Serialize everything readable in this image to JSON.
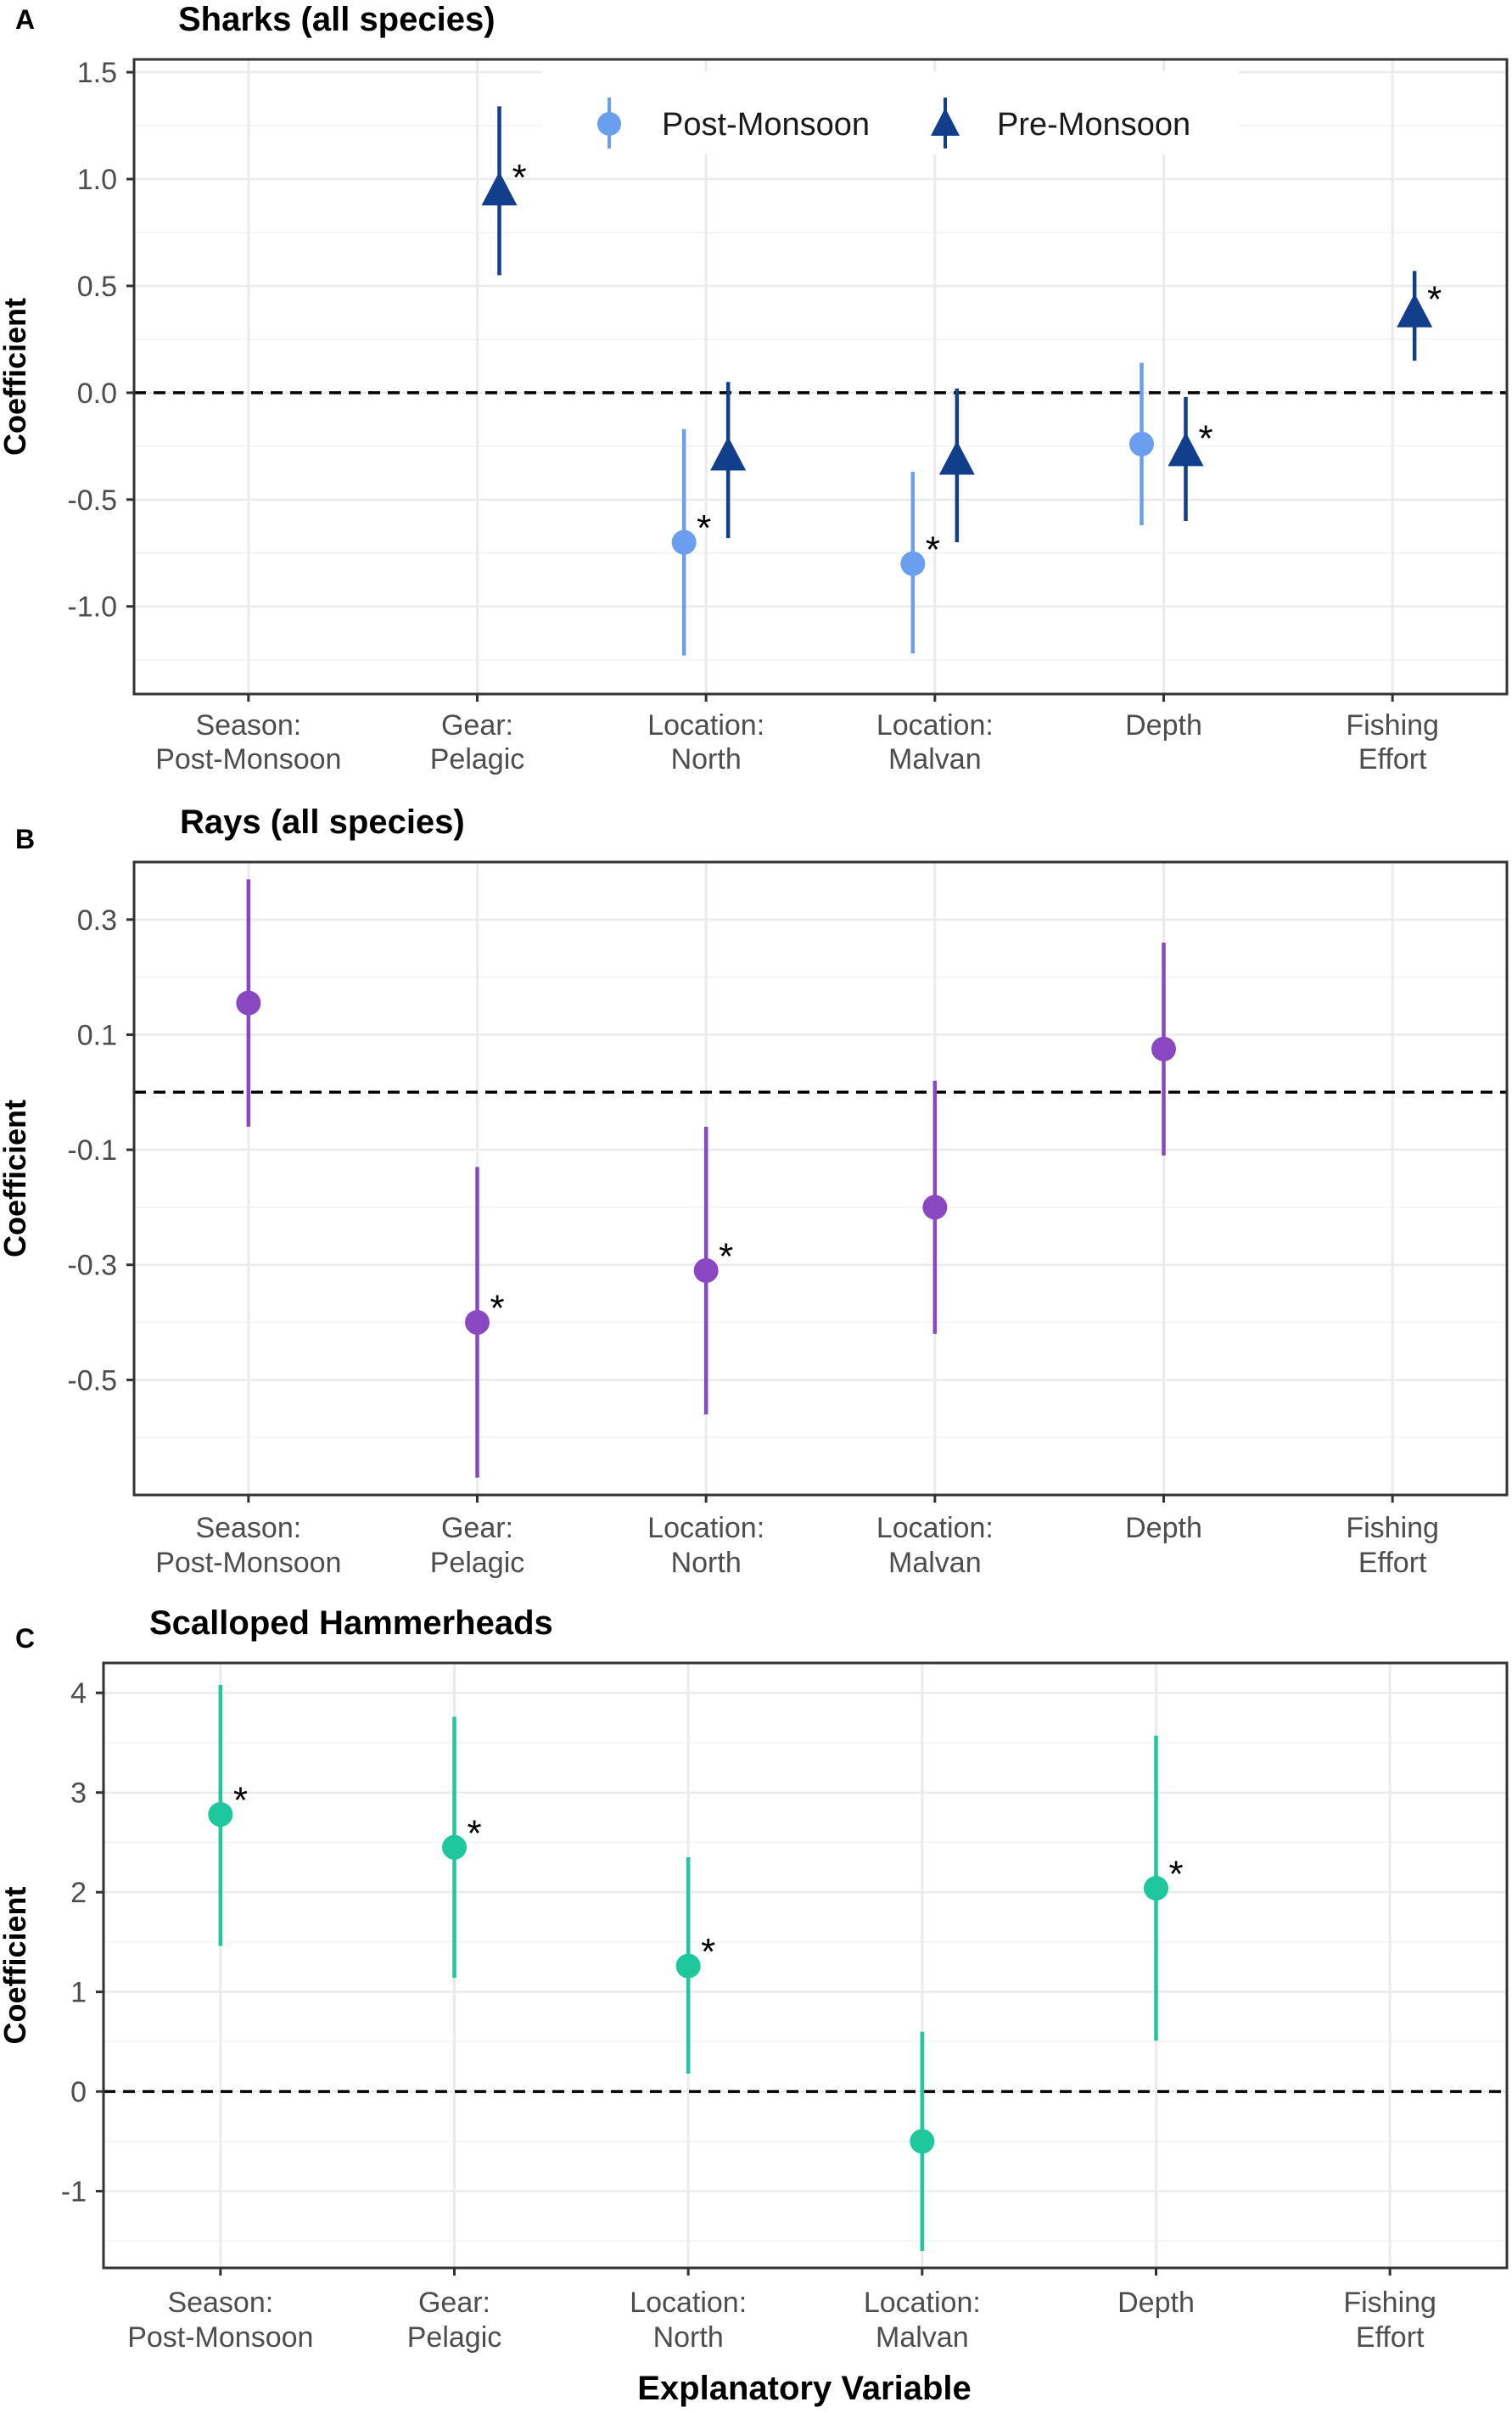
{
  "figure": {
    "xlabel": "Explanatory Variable",
    "ylabel": "Coefficient"
  },
  "colors": {
    "post_monsoon": "#6a9ff0",
    "pre_monsoon": "#123f8c",
    "rays": "#8a47c2",
    "hammerheads": "#1fc79c"
  },
  "chart_data": [
    {
      "type": "scatter",
      "panel": "A",
      "title": "Sharks (all species)",
      "ylabel": "Coefficient",
      "xlabel": "",
      "categories": [
        [
          "Season:",
          "Post-Monsoon"
        ],
        [
          "Gear:",
          "Pelagic"
        ],
        [
          "Location:",
          "North"
        ],
        [
          "Location:",
          "Malvan"
        ],
        [
          "Depth"
        ],
        [
          "Fishing",
          "Effort"
        ]
      ],
      "ylim": [
        -1.41,
        1.56
      ],
      "yticks": [
        1.5,
        1.0,
        0.5,
        0.0,
        -0.5,
        -1.0
      ],
      "yticklabels": [
        "1.5",
        "1.0",
        "0.5",
        "0.0",
        "-0.5",
        "-1.0"
      ],
      "legend": {
        "position": "top",
        "entries": [
          "Post-Monsoon",
          "Pre-Monsoon"
        ]
      },
      "series": [
        {
          "name": "Post-Monsoon",
          "marker": "circle",
          "colorKey": "post_monsoon",
          "points": [
            {
              "cat": 2,
              "y": -0.7,
              "lo": -1.23,
              "hi": -0.17,
              "sig": true
            },
            {
              "cat": 3,
              "y": -0.8,
              "lo": -1.22,
              "hi": -0.37,
              "sig": true
            },
            {
              "cat": 4,
              "y": -0.24,
              "lo": -0.62,
              "hi": 0.14,
              "sig": false
            }
          ]
        },
        {
          "name": "Pre-Monsoon",
          "marker": "triangle",
          "colorKey": "pre_monsoon",
          "points": [
            {
              "cat": 1,
              "y": 0.94,
              "lo": 0.55,
              "hi": 1.34,
              "sig": true
            },
            {
              "cat": 2,
              "y": -0.3,
              "lo": -0.68,
              "hi": 0.05,
              "sig": false
            },
            {
              "cat": 3,
              "y": -0.32,
              "lo": -0.7,
              "hi": 0.02,
              "sig": false
            },
            {
              "cat": 4,
              "y": -0.28,
              "lo": -0.6,
              "hi": -0.02,
              "sig": true
            },
            {
              "cat": 5,
              "y": 0.37,
              "lo": 0.15,
              "hi": 0.57,
              "sig": true
            }
          ]
        }
      ]
    },
    {
      "type": "scatter",
      "panel": "B",
      "title": "Rays (all species)",
      "ylabel": "Coefficient",
      "xlabel": "",
      "categories": [
        [
          "Season:",
          "Post-Monsoon"
        ],
        [
          "Gear:",
          "Pelagic"
        ],
        [
          "Location:",
          "North"
        ],
        [
          "Location:",
          "Malvan"
        ],
        [
          "Depth"
        ],
        [
          "Fishing",
          "Effort"
        ]
      ],
      "ylim": [
        -0.7,
        0.4
      ],
      "yticks": [
        0.3,
        0.1,
        -0.1,
        -0.3,
        -0.5
      ],
      "yticklabels": [
        "0.3",
        "0.1",
        "-0.1",
        "-0.3",
        "-0.5"
      ],
      "series": [
        {
          "name": "Rays",
          "marker": "circle",
          "colorKey": "rays",
          "points": [
            {
              "cat": 0,
              "y": 0.155,
              "lo": -0.06,
              "hi": 0.37,
              "sig": false
            },
            {
              "cat": 1,
              "y": -0.4,
              "lo": -0.67,
              "hi": -0.13,
              "sig": true
            },
            {
              "cat": 2,
              "y": -0.31,
              "lo": -0.56,
              "hi": -0.06,
              "sig": true
            },
            {
              "cat": 3,
              "y": -0.2,
              "lo": -0.42,
              "hi": 0.02,
              "sig": false
            },
            {
              "cat": 4,
              "y": 0.075,
              "lo": -0.11,
              "hi": 0.26,
              "sig": false
            }
          ]
        }
      ]
    },
    {
      "type": "scatter",
      "panel": "C",
      "title": "Scalloped Hammerheads",
      "ylabel": "Coefficient",
      "xlabel": "Explanatory Variable",
      "categories": [
        [
          "Season:",
          "Post-Monsoon"
        ],
        [
          "Gear:",
          "Pelagic"
        ],
        [
          "Location:",
          "North"
        ],
        [
          "Location:",
          "Malvan"
        ],
        [
          "Depth"
        ],
        [
          "Fishing",
          "Effort"
        ]
      ],
      "ylim": [
        -1.77,
        4.3
      ],
      "yticks": [
        4,
        3,
        2,
        1,
        0,
        -1
      ],
      "yticklabels": [
        "4",
        "3",
        "2",
        "1",
        "0",
        "-1"
      ],
      "series": [
        {
          "name": "Scalloped Hammerheads",
          "marker": "circle",
          "colorKey": "hammerheads",
          "points": [
            {
              "cat": 0,
              "y": 2.78,
              "lo": 1.46,
              "hi": 4.08,
              "sig": true
            },
            {
              "cat": 1,
              "y": 2.45,
              "lo": 1.14,
              "hi": 3.76,
              "sig": true
            },
            {
              "cat": 2,
              "y": 1.26,
              "lo": 0.18,
              "hi": 2.35,
              "sig": true
            },
            {
              "cat": 3,
              "y": -0.5,
              "lo": -1.6,
              "hi": 0.6,
              "sig": false
            },
            {
              "cat": 4,
              "y": 2.04,
              "lo": 0.51,
              "hi": 3.57,
              "sig": true
            }
          ]
        }
      ]
    }
  ]
}
